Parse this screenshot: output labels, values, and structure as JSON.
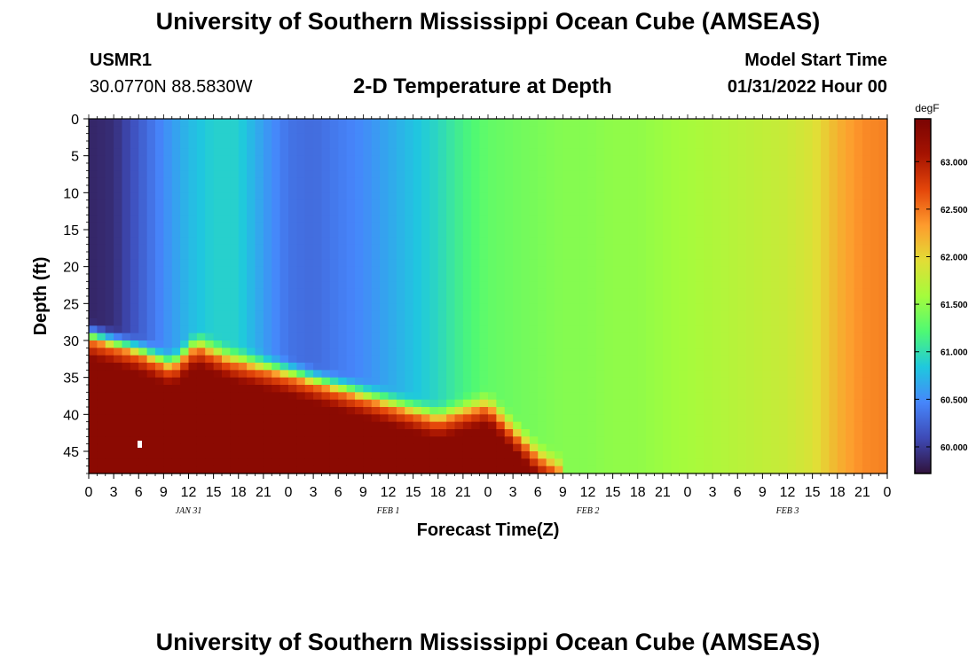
{
  "header": {
    "title": "University of Southern Mississippi Ocean Cube (AMSEAS)",
    "station": "USMR1",
    "coords": "30.0770N  88.5830W",
    "subtitle": "2-D Temperature at Depth",
    "model_label": "Model Start Time",
    "model_time": "01/31/2022 Hour 00"
  },
  "footer": {
    "title": "University of Southern Mississippi Ocean Cube (AMSEAS)"
  },
  "colors": {
    "colormap": [
      "#30123b",
      "#3e4ab6",
      "#4686fb",
      "#1fc8de",
      "#4ef974",
      "#a4fc3c",
      "#e2dd36",
      "#fe9b2d",
      "#e4460a",
      "#a51301",
      "#7a0403"
    ]
  },
  "chart_data": {
    "type": "heatmap",
    "title": "2-D Temperature at Depth",
    "xlabel": "Forecast Time(Z)",
    "ylabel": "Depth (ft)",
    "x_hours_range": [
      0,
      96
    ],
    "ylim": [
      0,
      48
    ],
    "y_ticks": [
      0,
      5,
      10,
      15,
      20,
      25,
      30,
      35,
      40,
      45
    ],
    "x_tick_labels": [
      "0",
      "3",
      "6",
      "9",
      "12",
      "15",
      "18",
      "21",
      "0",
      "3",
      "6",
      "9",
      "12",
      "15",
      "18",
      "21",
      "0",
      "3",
      "6",
      "9",
      "12",
      "15",
      "18",
      "21",
      "0",
      "3",
      "6",
      "9",
      "12",
      "15",
      "18",
      "21",
      "0"
    ],
    "date_labels": [
      {
        "label": "JAN 31",
        "hour": 12
      },
      {
        "label": "FEB 1",
        "hour": 36
      },
      {
        "label": "FEB 2",
        "hour": 60
      },
      {
        "label": "FEB 3",
        "hour": 84
      }
    ],
    "colorbar": {
      "unit": "degF",
      "range": [
        59.72,
        63.45
      ],
      "ticks": [
        "60.000",
        "60.500",
        "61.000",
        "61.500",
        "62.000",
        "62.500",
        "63.000"
      ]
    },
    "surface_temps_degF": [
      {
        "hour": 0,
        "value": 59.85
      },
      {
        "hour": 3,
        "value": 59.9
      },
      {
        "hour": 6,
        "value": 60.2
      },
      {
        "hour": 9,
        "value": 60.5
      },
      {
        "hour": 12,
        "value": 60.75
      },
      {
        "hour": 15,
        "value": 60.9
      },
      {
        "hour": 18,
        "value": 60.9
      },
      {
        "hour": 21,
        "value": 60.6
      },
      {
        "hour": 24,
        "value": 60.35
      },
      {
        "hour": 27,
        "value": 60.3
      },
      {
        "hour": 30,
        "value": 60.4
      },
      {
        "hour": 33,
        "value": 60.5
      },
      {
        "hour": 36,
        "value": 60.65
      },
      {
        "hour": 39,
        "value": 60.8
      },
      {
        "hour": 42,
        "value": 60.95
      },
      {
        "hour": 45,
        "value": 61.15
      },
      {
        "hour": 48,
        "value": 61.3
      },
      {
        "hour": 51,
        "value": 61.35
      },
      {
        "hour": 54,
        "value": 61.4
      },
      {
        "hour": 57,
        "value": 61.45
      },
      {
        "hour": 60,
        "value": 61.45
      },
      {
        "hour": 63,
        "value": 61.5
      },
      {
        "hour": 66,
        "value": 61.5
      },
      {
        "hour": 69,
        "value": 61.55
      },
      {
        "hour": 72,
        "value": 61.6
      },
      {
        "hour": 75,
        "value": 61.65
      },
      {
        "hour": 78,
        "value": 61.7
      },
      {
        "hour": 81,
        "value": 61.75
      },
      {
        "hour": 84,
        "value": 61.8
      },
      {
        "hour": 87,
        "value": 61.9
      },
      {
        "hour": 90,
        "value": 62.2
      },
      {
        "hour": 93,
        "value": 62.4
      },
      {
        "hour": 96,
        "value": 62.45
      }
    ],
    "thermocline_depth_ft": [
      {
        "hour": 0,
        "value": 30
      },
      {
        "hour": 6,
        "value": 32
      },
      {
        "hour": 10,
        "value": 34
      },
      {
        "hour": 13,
        "value": 31
      },
      {
        "hour": 17,
        "value": 33
      },
      {
        "hour": 24,
        "value": 35
      },
      {
        "hour": 30,
        "value": 37
      },
      {
        "hour": 36,
        "value": 39
      },
      {
        "hour": 42,
        "value": 41
      },
      {
        "hour": 48,
        "value": 39
      },
      {
        "hour": 54,
        "value": 46
      },
      {
        "hour": 57,
        "value": 48
      }
    ],
    "bottom_temp_degF": 63.3
  }
}
